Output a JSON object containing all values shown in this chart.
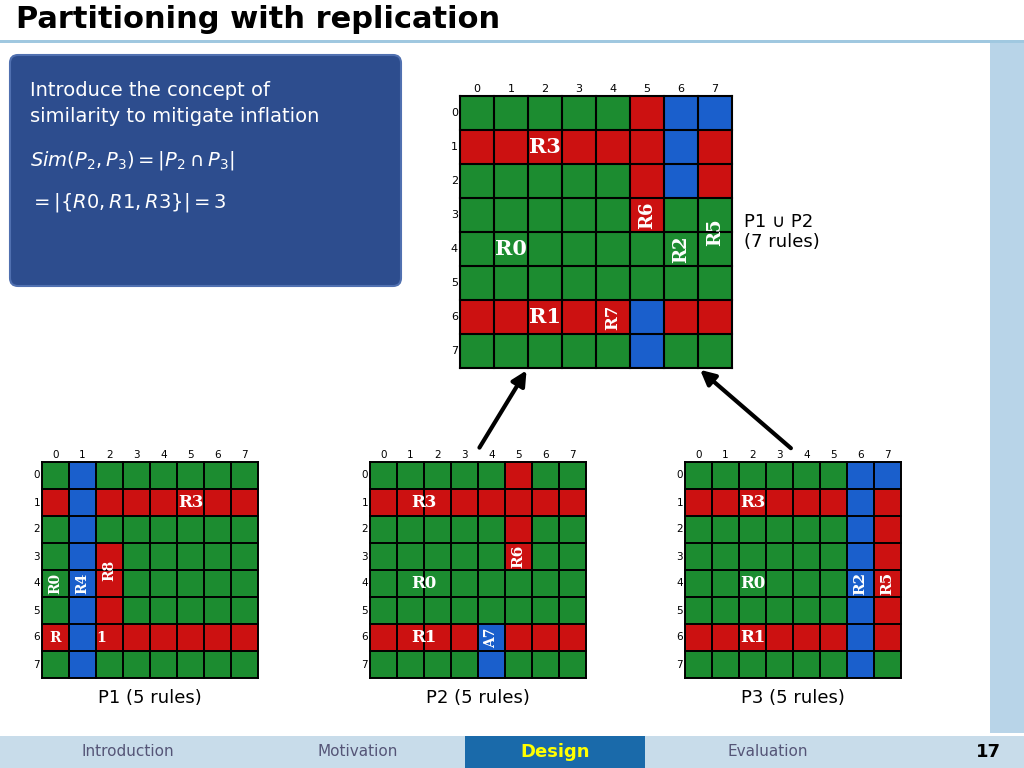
{
  "title": "Partitioning with replication",
  "bg_color": "#ffffff",
  "green": "#1c8c30",
  "red": "#cc1111",
  "blue": "#1a5fcc",
  "text_box_bg": "#2d4d8e",
  "footer_items": [
    "Introduction",
    "Motivation",
    "Design",
    "Evaluation",
    "17"
  ],
  "footer_highlight": "Design",
  "union_label": "P1 ∪ P2\n(7 rules)",
  "p1_label": "P1 (5 rules)",
  "p2_label": "P2 (5 rules)",
  "p3_label": "P3 (5 rules)",
  "title_sep_color": "#a0c8e0",
  "right_bar_color": "#b8d4e8",
  "footer_bg": "#c8dcea",
  "footer_design_bg": "#1a6aaa",
  "footer_design_color": "#ffff00",
  "footer_text_color": "#555577"
}
